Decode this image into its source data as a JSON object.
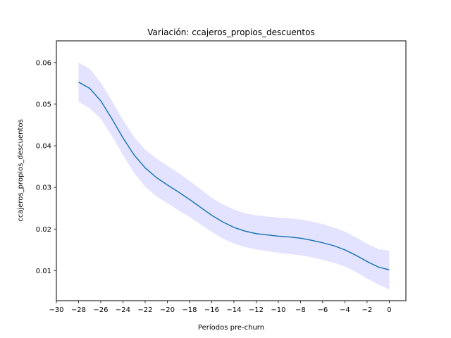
{
  "chart_data": {
    "type": "line",
    "title": "Variación: ccajeros_propios_descuentos",
    "xlabel": "Períodos pre-churn",
    "ylabel": "ccajeros_propios_descuentos",
    "xlim": [
      -30,
      1.5
    ],
    "ylim": [
      0.0028,
      0.0652
    ],
    "x_ticks": [
      -30,
      -28,
      -26,
      -24,
      -22,
      -20,
      -18,
      -16,
      -14,
      -12,
      -10,
      -8,
      -6,
      -4,
      -2,
      0
    ],
    "x_tick_labels": [
      "−30",
      "−28",
      "−26",
      "−24",
      "−22",
      "−20",
      "−18",
      "−16",
      "−14",
      "−12",
      "−10",
      "−8",
      "−6",
      "−4",
      "−2",
      "0"
    ],
    "y_ticks": [
      0.01,
      0.02,
      0.03,
      0.04,
      0.05,
      0.06
    ],
    "y_tick_labels": [
      "0.01",
      "0.02",
      "0.03",
      "0.04",
      "0.05",
      "0.06"
    ],
    "grid": false,
    "colors": {
      "line": "#1f77b4",
      "band": "#0000ff",
      "band_opacity": 0.11
    },
    "series": [
      {
        "x": [
          -28,
          -27,
          -26,
          -25,
          -24,
          -23,
          -22,
          -21,
          -20,
          -19,
          -18,
          -17,
          -16,
          -15,
          -14,
          -13,
          -12,
          -11,
          -10,
          -9,
          -8,
          -7,
          -6,
          -5,
          -4,
          -3,
          -2,
          -1,
          0
        ],
        "y": [
          0.0553,
          0.0538,
          0.0508,
          0.0465,
          0.0419,
          0.0378,
          0.0347,
          0.0324,
          0.0306,
          0.0289,
          0.0271,
          0.0252,
          0.0233,
          0.0217,
          0.0204,
          0.0195,
          0.0189,
          0.0186,
          0.0183,
          0.0181,
          0.0178,
          0.0173,
          0.0167,
          0.016,
          0.015,
          0.0137,
          0.0122,
          0.0109,
          0.0102
        ],
        "lower": [
          0.0506,
          0.049,
          0.0465,
          0.0424,
          0.0378,
          0.0335,
          0.0302,
          0.0279,
          0.0262,
          0.0245,
          0.0229,
          0.0211,
          0.0193,
          0.0177,
          0.0165,
          0.0157,
          0.0151,
          0.0147,
          0.0143,
          0.014,
          0.0137,
          0.0132,
          0.0126,
          0.0119,
          0.011,
          0.0097,
          0.0081,
          0.0067,
          0.0055
        ],
        "upper": [
          0.06,
          0.0585,
          0.0552,
          0.0508,
          0.0462,
          0.0421,
          0.0391,
          0.037,
          0.0352,
          0.0335,
          0.0316,
          0.0296,
          0.0275,
          0.0259,
          0.0247,
          0.0238,
          0.0233,
          0.023,
          0.0228,
          0.0226,
          0.0223,
          0.0218,
          0.0212,
          0.0204,
          0.0194,
          0.018,
          0.0165,
          0.0152,
          0.0148
        ]
      }
    ]
  }
}
